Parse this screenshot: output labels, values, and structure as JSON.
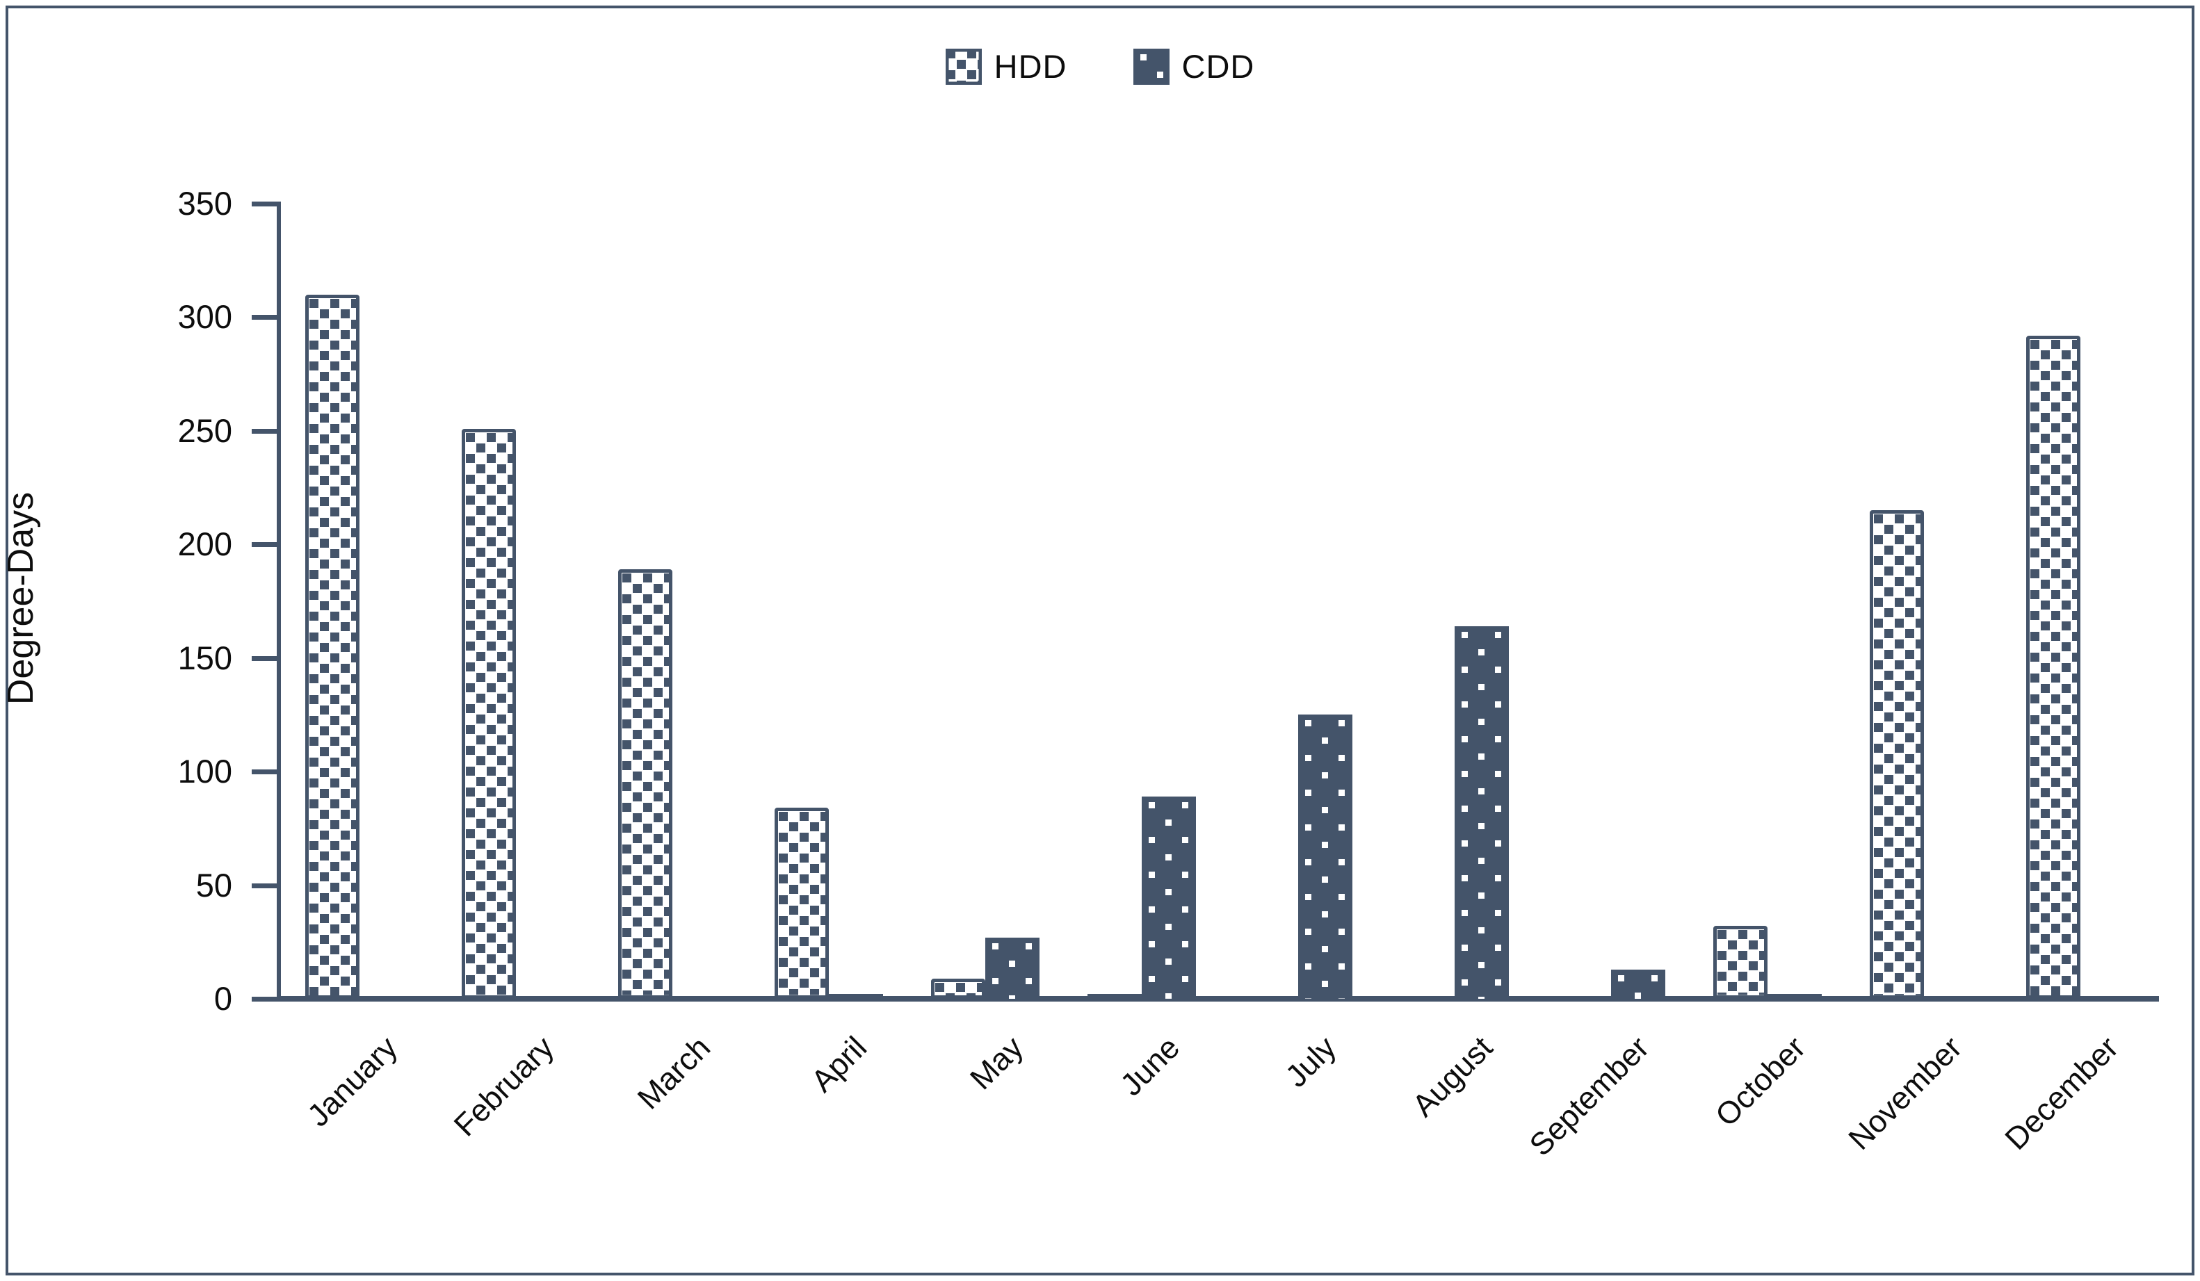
{
  "page": {
    "background": "#ffffff",
    "frame_color": "#44546A"
  },
  "legend": {
    "position": "top-center",
    "items": [
      {
        "label": "HDD",
        "swatch": "dark-checker-dots-on-white"
      },
      {
        "label": "CDD",
        "swatch": "sparse-white-dots-on-dark"
      }
    ]
  },
  "chart_data": {
    "type": "bar",
    "title": "",
    "xlabel": "",
    "ylabel": "Degree-Days",
    "categories": [
      "January",
      "February",
      "March",
      "April",
      "May",
      "June",
      "July",
      "August",
      "September",
      "October",
      "November",
      "December"
    ],
    "series": [
      {
        "name": "HDD",
        "values": [
          310,
          251,
          189,
          84,
          9,
          1,
          0,
          0,
          0,
          32,
          215,
          292
        ],
        "fill_style": "dark-checker-dots-on-white",
        "color": "#44546A"
      },
      {
        "name": "CDD",
        "values": [
          0,
          0,
          0,
          1,
          27,
          89,
          125,
          164,
          13,
          1,
          0,
          0
        ],
        "fill_style": "sparse-white-dots-on-dark",
        "color": "#44546A"
      }
    ],
    "ylim": [
      0,
      350
    ],
    "yticks": [
      0,
      50,
      100,
      150,
      200,
      250,
      300,
      350
    ],
    "grid": "off",
    "legend_position": "top-center",
    "axis_color": "#44546A",
    "text_color": "#0d0d0d",
    "bar_orientation": "vertical",
    "x_label_rotation_deg": 45
  }
}
